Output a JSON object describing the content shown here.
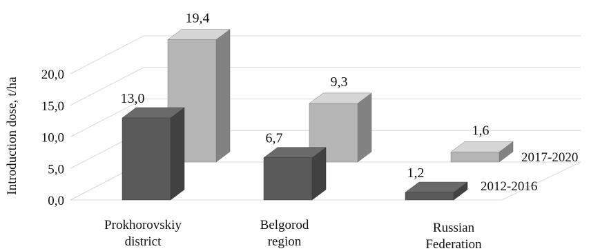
{
  "chart_data": {
    "type": "bar",
    "style": "3d-clustered-depth",
    "ylabel": "Introduction dose, t/ha",
    "ylim": [
      0,
      20
    ],
    "yticks": [
      "0,0",
      "5,0",
      "10,0",
      "15,0",
      "20,0"
    ],
    "grid": true,
    "categories": [
      [
        "Prokhorovskiy",
        "district"
      ],
      [
        "Belgorod",
        "region"
      ],
      [
        "Russian",
        "Federation"
      ]
    ],
    "series": [
      {
        "name": "2012-2016",
        "values": [
          13.0,
          6.7,
          1.2
        ],
        "labels": [
          "13,0",
          "6,7",
          "1,2"
        ],
        "color": "#5a5a5a"
      },
      {
        "name": "2017-2020",
        "values": [
          19.4,
          9.3,
          1.6
        ],
        "labels": [
          "19,4",
          "9,3",
          "1,6"
        ],
        "color": "#b5b5b5"
      }
    ]
  }
}
